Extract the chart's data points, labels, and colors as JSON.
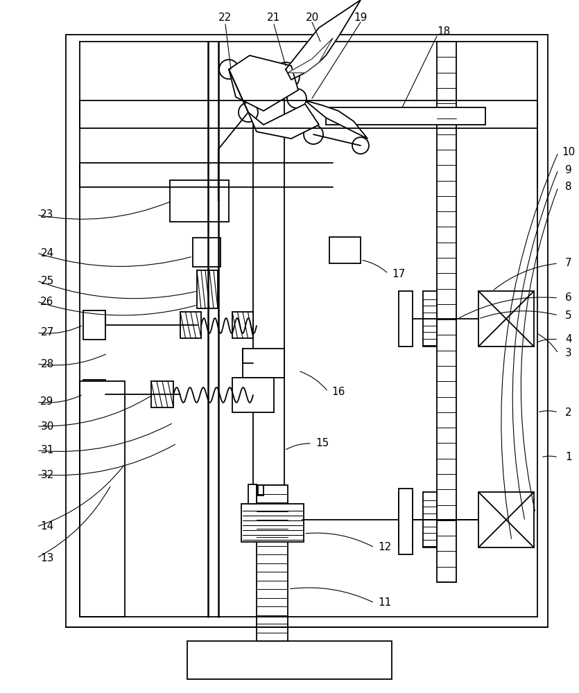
{
  "bg_color": "#ffffff",
  "lc": "#000000",
  "lw": 1.3,
  "fig_w": 8.35,
  "fig_h": 10.0,
  "dpi": 100
}
